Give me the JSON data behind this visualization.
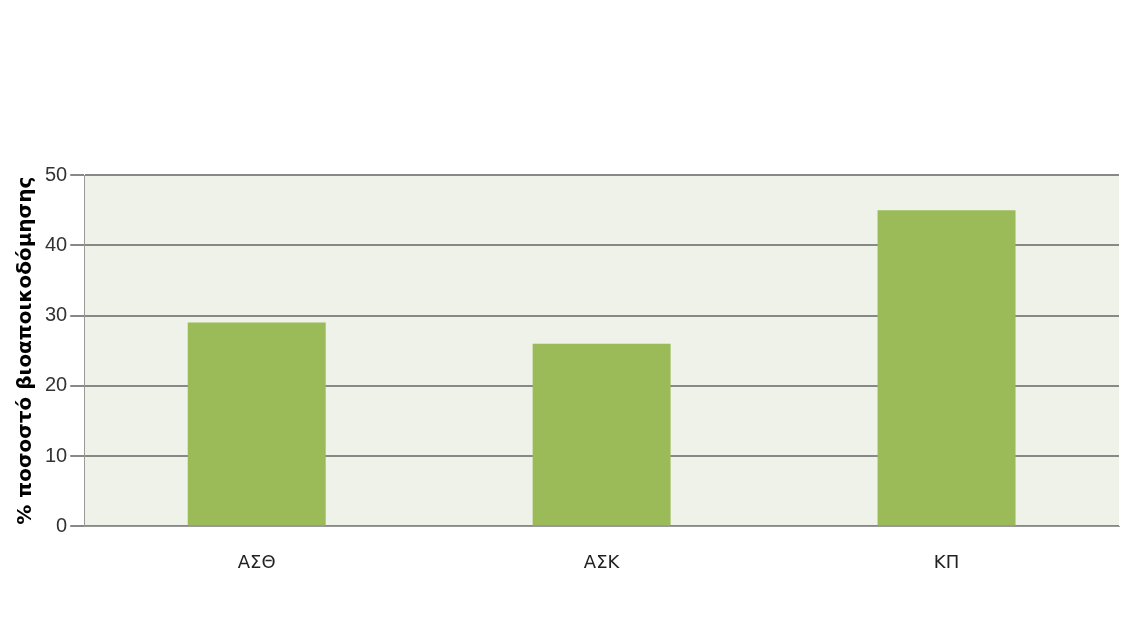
{
  "chart_data": {
    "type": "bar",
    "ylabel": "% ποσοστό βιοαποικοδόμησης",
    "categories": [
      "ΑΣΘ",
      "ΑΣΚ",
      "ΚΠ"
    ],
    "values": [
      29,
      26,
      45
    ],
    "color": "#9bbb59",
    "ylim": [
      0,
      50
    ],
    "yticks": [
      0,
      10,
      20,
      30,
      40,
      50
    ],
    "grid": "y"
  }
}
